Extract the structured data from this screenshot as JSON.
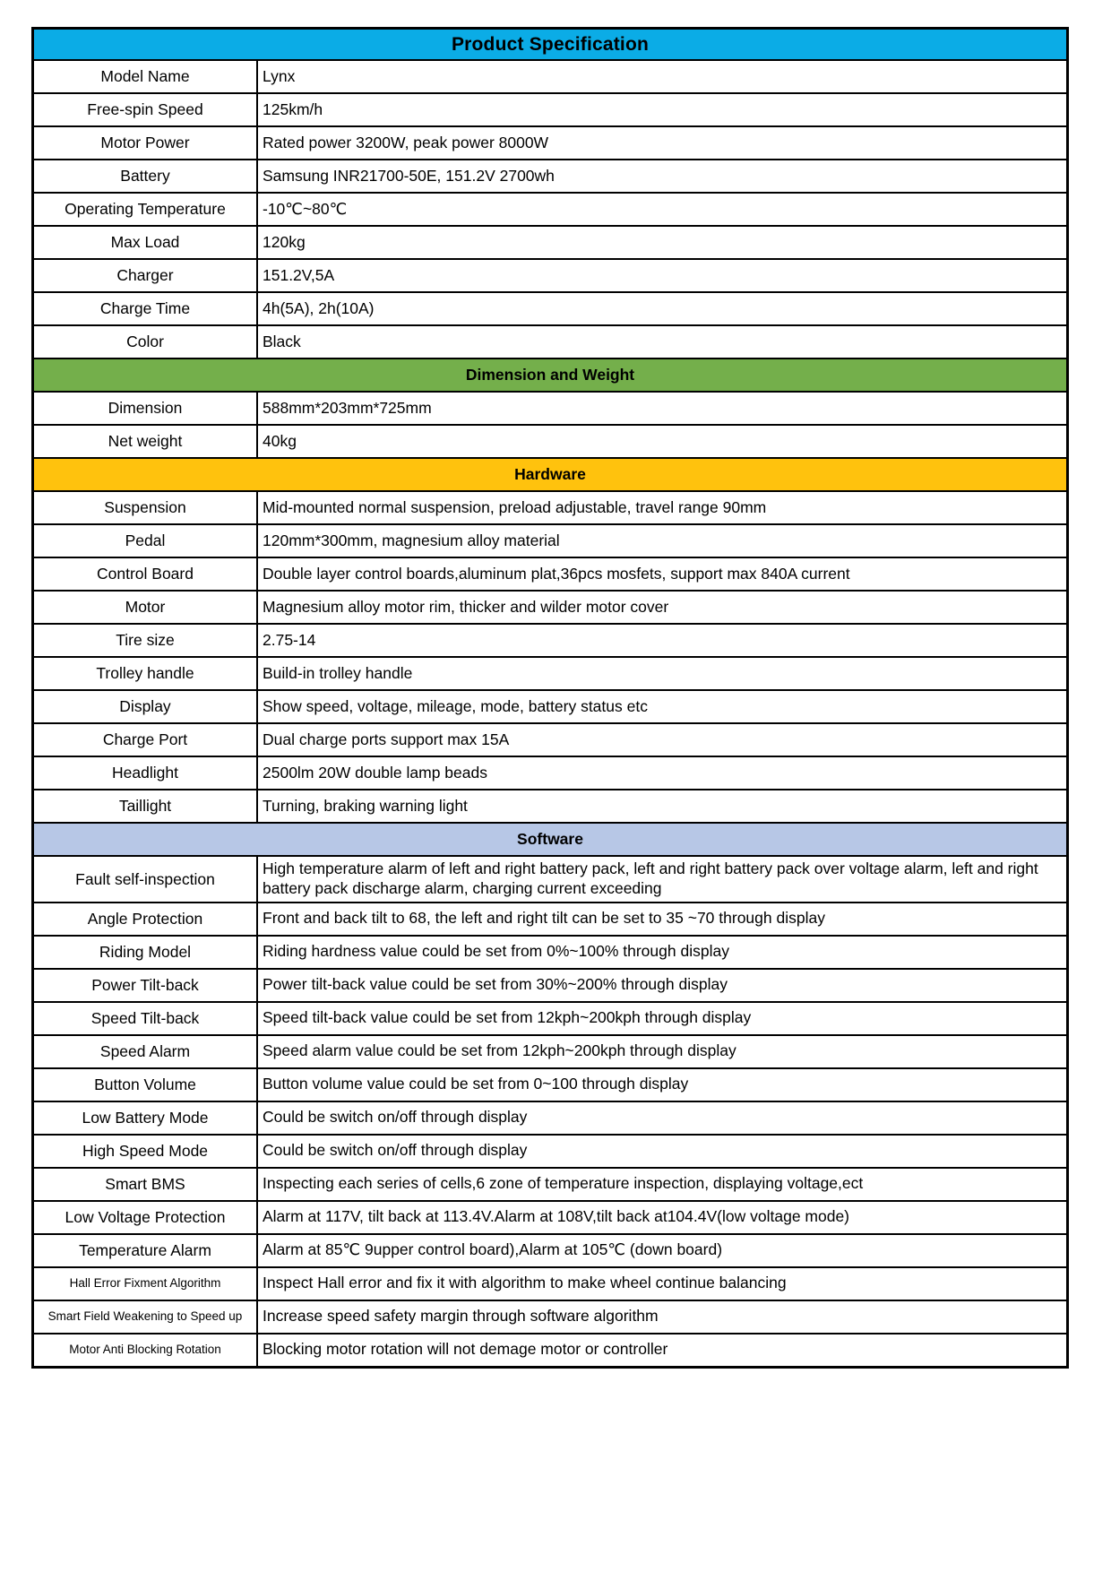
{
  "title": "Product Specification",
  "colors": {
    "title_bg": "#0bace6",
    "dimension_header_bg": "#74af4b",
    "hardware_header_bg": "#ffc20d",
    "software_header_bg": "#b7c7e6",
    "border": "#000000",
    "text": "#000000"
  },
  "sections": [
    {
      "header": null,
      "rows": [
        {
          "label": "Model Name",
          "value": "Lynx"
        },
        {
          "label": "Free-spin Speed",
          "value": "125km/h"
        },
        {
          "label": "Motor Power",
          "value": "Rated power 3200W, peak power 8000W"
        },
        {
          "label": "Battery",
          "value": "Samsung INR21700-50E, 151.2V 2700wh"
        },
        {
          "label": "Operating Temperature",
          "value": "-10℃~80℃"
        },
        {
          "label": "Max Load",
          "value": "120kg"
        },
        {
          "label": "Charger",
          "value": "151.2V,5A"
        },
        {
          "label": "Charge Time",
          "value": "4h(5A), 2h(10A)"
        },
        {
          "label": "Color",
          "value": "Black"
        }
      ]
    },
    {
      "header": "Dimension and Weight",
      "header_color": "#74af4b",
      "rows": [
        {
          "label": "Dimension",
          "value": "588mm*203mm*725mm"
        },
        {
          "label": "Net weight",
          "value": "40kg"
        }
      ]
    },
    {
      "header": "Hardware",
      "header_color": "#ffc20d",
      "rows": [
        {
          "label": "Suspension",
          "value": "Mid-mounted normal suspension, preload adjustable, travel range 90mm"
        },
        {
          "label": "Pedal",
          "value": "120mm*300mm, magnesium alloy material"
        },
        {
          "label": "Control Board",
          "value": "Double layer control boards,aluminum plat,36pcs mosfets, support max 840A current"
        },
        {
          "label": "Motor",
          "value": "Magnesium alloy motor rim, thicker and wilder motor cover"
        },
        {
          "label": "Tire size",
          "value": "2.75-14"
        },
        {
          "label": "Trolley handle",
          "value": "Build-in trolley handle"
        },
        {
          "label": "Display",
          "value": "Show speed, voltage, mileage, mode, battery status etc"
        },
        {
          "label": "Charge Port",
          "value": "Dual charge ports support max 15A"
        },
        {
          "label": "Headlight",
          "value": "2500lm 20W double lamp beads"
        },
        {
          "label": "Taillight",
          "value": "Turning, braking warning light"
        }
      ]
    },
    {
      "header": "Software",
      "header_color": "#b7c7e6",
      "rows": [
        {
          "label": "Fault self-inspection",
          "value": "High temperature alarm of left and right battery pack, left and right battery pack over voltage alarm, left and right battery pack discharge alarm, charging current exceeding"
        },
        {
          "label": "Angle Protection",
          "value": "Front and back tilt to 68, the left and right tilt can be set to 35 ~70 through display"
        },
        {
          "label": "Riding Model",
          "value": "Riding hardness value could be set from 0%~100% through display"
        },
        {
          "label": "Power Tilt-back",
          "value": "Power tilt-back value could be set from 30%~200% through display"
        },
        {
          "label": "Speed Tilt-back",
          "value": "Speed tilt-back value could be set from 12kph~200kph through display"
        },
        {
          "label": "Speed Alarm",
          "value": "Speed alarm value could be set from 12kph~200kph through display"
        },
        {
          "label": "Button Volume",
          "value": "Button volume value could be set from 0~100 through display"
        },
        {
          "label": "Low Battery Mode",
          "value": "Could be switch on/off through display"
        },
        {
          "label": "High Speed Mode",
          "value": "Could be switch on/off through display"
        },
        {
          "label": "Smart BMS",
          "value": "Inspecting each series of cells,6 zone of temperature inspection, displaying voltage,ect"
        },
        {
          "label": "Low Voltage Protection",
          "value": "Alarm at 117V, tilt back at 113.4V.Alarm at 108V,tilt back at104.4V(low voltage mode)"
        },
        {
          "label": "Temperature Alarm",
          "value": "Alarm at 85℃ 9upper control board),Alarm at 105℃ (down board)"
        },
        {
          "label": "Hall Error Fixment Algorithm",
          "value": "Inspect Hall error and fix it with algorithm to make wheel continue balancing"
        },
        {
          "label": "Smart Field Weakening to Speed up",
          "value": "Increase speed safety margin through software algorithm"
        },
        {
          "label": "Motor Anti Blocking Rotation",
          "value": "Blocking motor rotation will not demage motor or controller"
        }
      ]
    }
  ]
}
